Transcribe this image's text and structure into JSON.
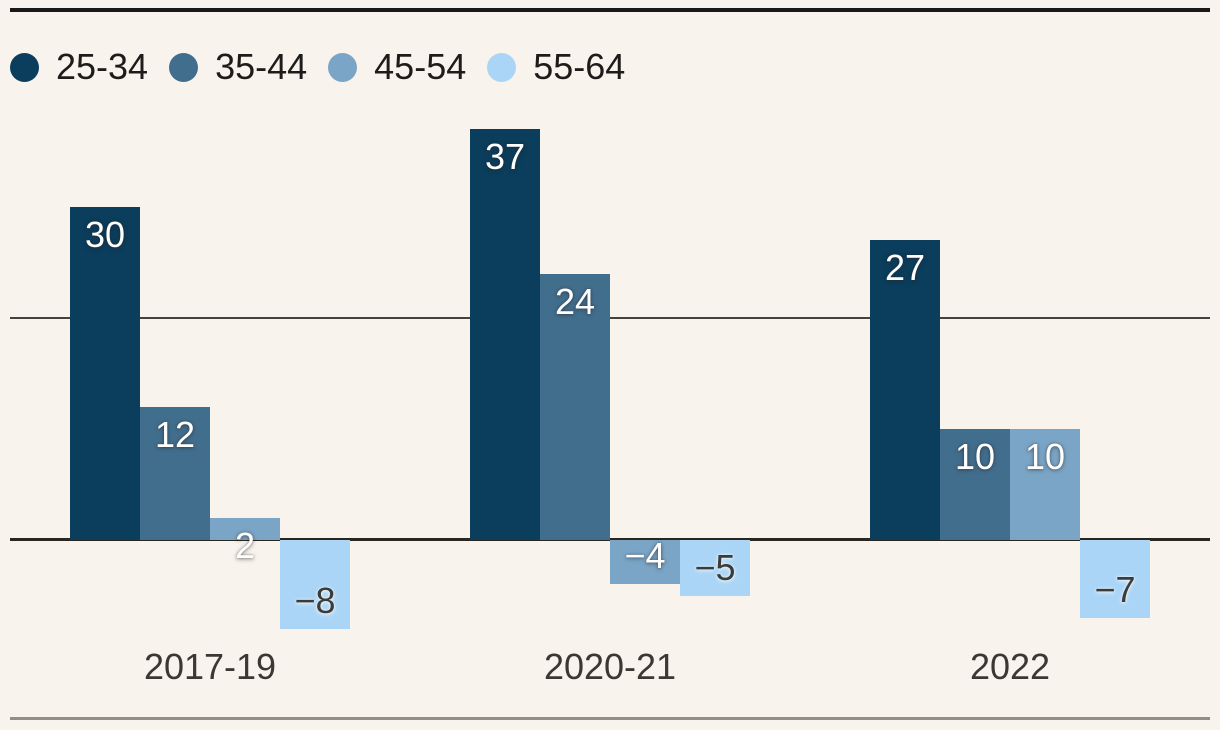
{
  "chart_data": {
    "type": "bar",
    "title": "",
    "xlabel": "",
    "ylabel": "",
    "categories": [
      "2017-19",
      "2020-21",
      "2022"
    ],
    "series": [
      {
        "name": "25-34",
        "color": "#0b3d5c",
        "label_text": "light",
        "values": [
          30,
          37,
          27
        ]
      },
      {
        "name": "35-44",
        "color": "#426e8e",
        "label_text": "light",
        "values": [
          12,
          24,
          10
        ]
      },
      {
        "name": "45-54",
        "color": "#7ba5c6",
        "label_text": "light",
        "values": [
          2,
          -4,
          10
        ]
      },
      {
        "name": "55-64",
        "color": "#abd5f6",
        "label_text": "dark",
        "values": [
          -8,
          -5,
          -7
        ]
      }
    ],
    "data_labels": {
      "2017-19": [
        "30",
        "12",
        "2",
        "−8"
      ],
      "2020-21": [
        "37",
        "24",
        "−4",
        "−5"
      ],
      "2022": [
        "27",
        "10",
        "10",
        "−7"
      ]
    },
    "ylim": [
      -10,
      42
    ],
    "gridline_values": [
      20
    ],
    "baseline_value": 0,
    "grid_on": true,
    "legend_position": "top-left"
  },
  "colors": {
    "background": "#f8f3ec",
    "top_rule": "#191919",
    "gridline": "#45423d",
    "zero_line": "#29261f",
    "bottom_rule": "#918e88",
    "legend_text": "#1e1c1a",
    "category_text": "#3b3834",
    "bar_label_light": "#ffffff",
    "bar_label_dark": "#3d3b37"
  }
}
